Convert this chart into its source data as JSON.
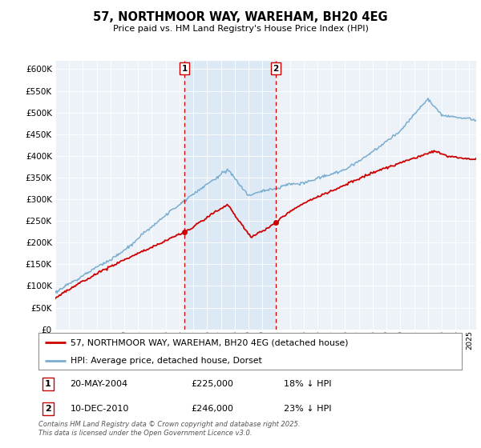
{
  "title": "57, NORTHMOOR WAY, WAREHAM, BH20 4EG",
  "subtitle": "Price paid vs. HM Land Registry's House Price Index (HPI)",
  "legend_line1": "57, NORTHMOOR WAY, WAREHAM, BH20 4EG (detached house)",
  "legend_line2": "HPI: Average price, detached house, Dorset",
  "annotation1_label": "1",
  "annotation1_date": "20-MAY-2004",
  "annotation1_price": "£225,000",
  "annotation1_hpi": "18% ↓ HPI",
  "annotation2_label": "2",
  "annotation2_date": "10-DEC-2010",
  "annotation2_price": "£246,000",
  "annotation2_hpi": "23% ↓ HPI",
  "footer": "Contains HM Land Registry data © Crown copyright and database right 2025.\nThis data is licensed under the Open Government Licence v3.0.",
  "red_color": "#cc0000",
  "blue_color": "#7aadcf",
  "shade_color": "#ddeaf5",
  "background_color": "#ffffff",
  "plot_bg_color": "#edf2f8",
  "vline_color": "#cc0000",
  "ylim": [
    0,
    620000
  ],
  "ytick_step": 50000,
  "sale1_year": 2004.375,
  "sale1_price": 225000,
  "sale2_year": 2010.958,
  "sale2_price": 246000,
  "xmin": 1995.5,
  "xmax": 2025.5
}
